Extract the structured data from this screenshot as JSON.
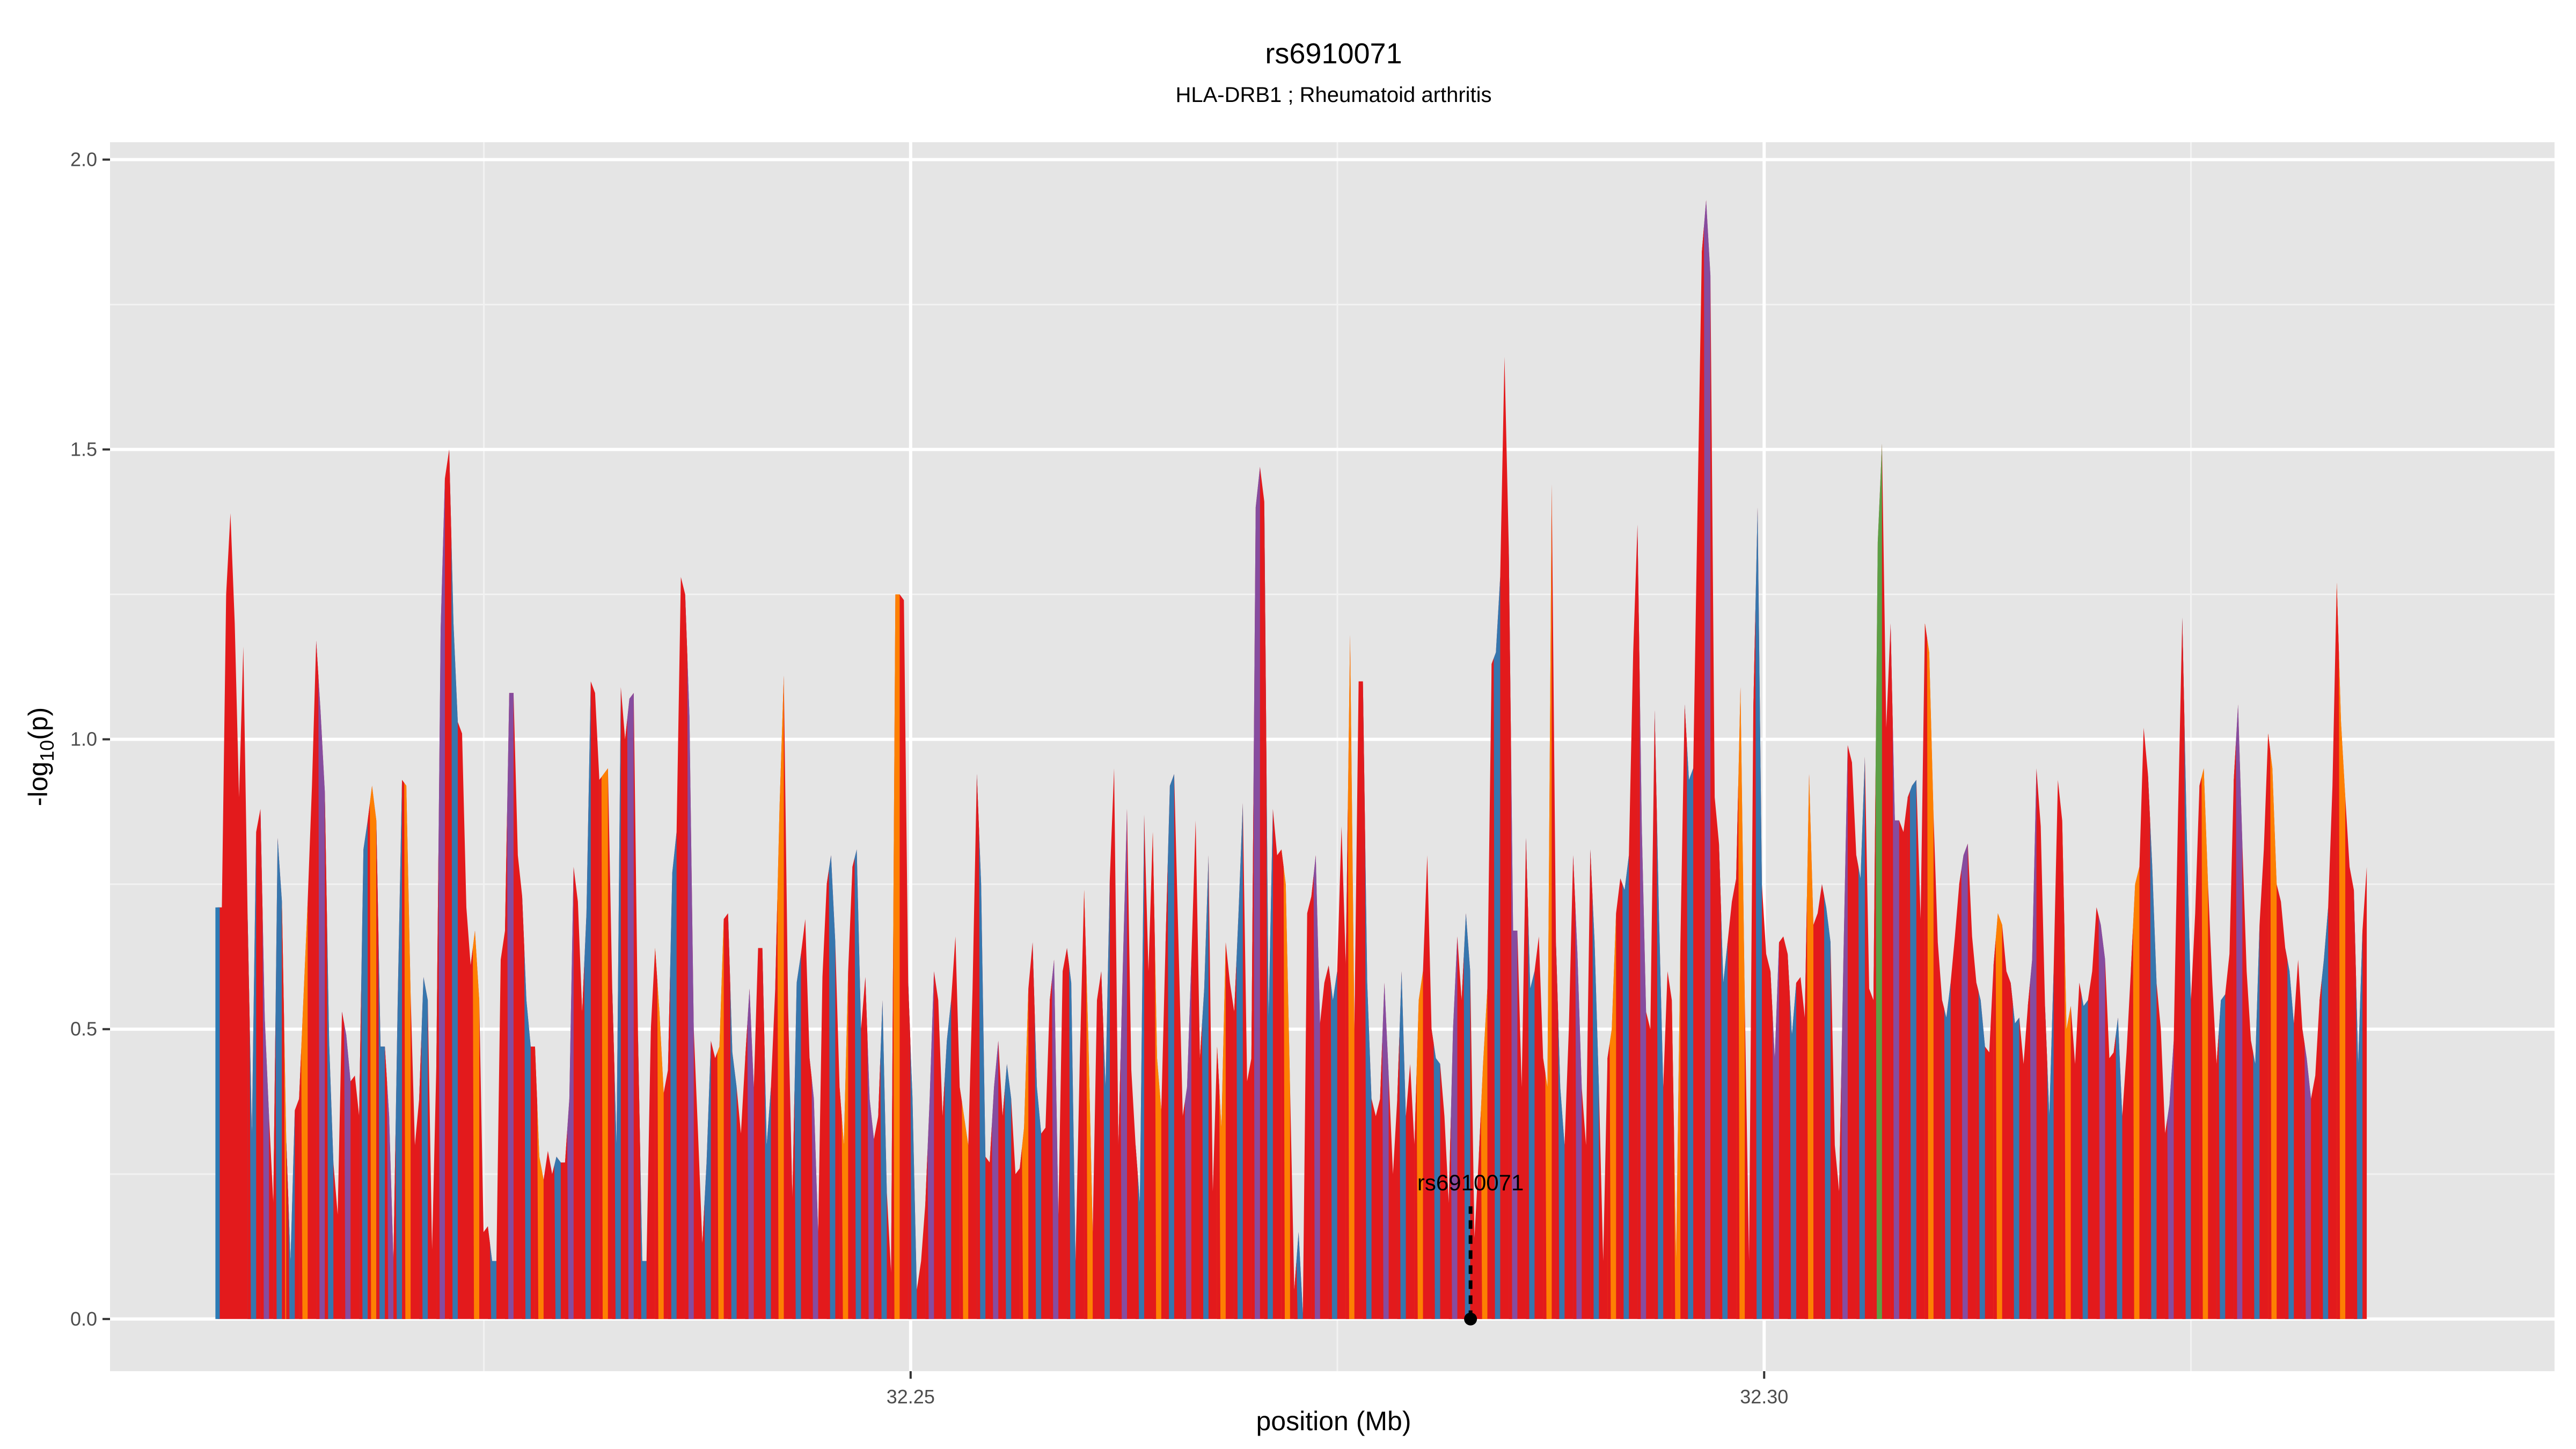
{
  "chart_data": {
    "type": "area",
    "title": "rs6910071",
    "subtitle": "HLA-DRB1 ; Rheumatoid arthritis",
    "xlabel": "position (Mb)",
    "ylabel_main": "-log",
    "ylabel_sub": "10",
    "ylabel_tail": "(p)",
    "xlim": [
      32.2031,
      32.3463
    ],
    "ylim": [
      -0.09,
      2.03
    ],
    "x_ticks": [
      32.25,
      32.3
    ],
    "x_tick_labels": [
      "32.25",
      "32.30"
    ],
    "y_ticks": [
      0.0,
      0.5,
      1.0,
      1.5,
      2.0
    ],
    "y_tick_labels": [
      "0.0",
      "0.5",
      "1.0",
      "1.5",
      "2.0"
    ],
    "grid": true,
    "colors": {
      "panel": "#e5e5e5",
      "grid_major": "#ffffff",
      "red": "#e31a1c",
      "blue": "#2c7bb6",
      "orange": "#ff8c00",
      "purple": "#7b52ae",
      "green": "#4daf4a"
    },
    "x_range": [
      32.2094,
      32.3353
    ],
    "values": [
      0.71,
      0.71,
      1.25,
      1.39,
      1.2,
      0.9,
      1.16,
      0.7,
      0.32,
      0.84,
      0.88,
      0.52,
      0.35,
      0.2,
      0.83,
      0.72,
      0.31,
      0.1,
      0.36,
      0.38,
      0.55,
      0.72,
      0.92,
      1.17,
      1.05,
      0.91,
      0.48,
      0.27,
      0.18,
      0.53,
      0.49,
      0.41,
      0.42,
      0.35,
      0.81,
      0.86,
      0.92,
      0.86,
      0.47,
      0.47,
      0.35,
      0.1,
      0.55,
      0.93,
      0.92,
      0.56,
      0.3,
      0.38,
      0.59,
      0.55,
      0.12,
      0.44,
      1.19,
      1.45,
      1.5,
      1.2,
      1.03,
      1.01,
      0.71,
      0.61,
      0.67,
      0.55,
      0.15,
      0.16,
      0.1,
      0.1,
      0.62,
      0.67,
      1.08,
      1.08,
      0.8,
      0.73,
      0.55,
      0.47,
      0.47,
      0.28,
      0.24,
      0.29,
      0.25,
      0.28,
      0.27,
      0.27,
      0.38,
      0.78,
      0.72,
      0.53,
      0.7,
      1.1,
      1.08,
      0.93,
      0.94,
      0.95,
      0.57,
      0.3,
      1.09,
      1.0,
      1.07,
      1.08,
      0.49,
      0.1,
      0.1,
      0.5,
      0.64,
      0.53,
      0.39,
      0.43,
      0.77,
      0.84,
      1.28,
      1.25,
      1.04,
      0.5,
      0.32,
      0.13,
      0.27,
      0.48,
      0.45,
      0.47,
      0.69,
      0.7,
      0.46,
      0.4,
      0.32,
      0.45,
      0.57,
      0.4,
      0.64,
      0.64,
      0.3,
      0.4,
      0.57,
      0.88,
      1.11,
      0.54,
      0.21,
      0.58,
      0.63,
      0.69,
      0.45,
      0.38,
      0.15,
      0.59,
      0.75,
      0.8,
      0.65,
      0.4,
      0.3,
      0.6,
      0.78,
      0.81,
      0.5,
      0.59,
      0.38,
      0.31,
      0.35,
      0.55,
      0.22,
      0.08,
      1.25,
      1.25,
      1.24,
      0.58,
      0.38,
      0.05,
      0.1,
      0.2,
      0.38,
      0.6,
      0.55,
      0.35,
      0.48,
      0.55,
      0.66,
      0.4,
      0.35,
      0.3,
      0.57,
      0.94,
      0.75,
      0.28,
      0.27,
      0.4,
      0.48,
      0.35,
      0.44,
      0.38,
      0.25,
      0.26,
      0.33,
      0.57,
      0.65,
      0.4,
      0.32,
      0.33,
      0.55,
      0.62,
      0.18,
      0.6,
      0.64,
      0.58,
      0.1,
      0.45,
      0.74,
      0.48,
      0.15,
      0.55,
      0.6,
      0.4,
      0.76,
      0.95,
      0.3,
      0.6,
      0.88,
      0.43,
      0.3,
      0.2,
      0.87,
      0.6,
      0.84,
      0.45,
      0.36,
      0.65,
      0.92,
      0.94,
      0.65,
      0.35,
      0.4,
      0.62,
      0.86,
      0.45,
      0.57,
      0.8,
      0.22,
      0.47,
      0.33,
      0.65,
      0.58,
      0.53,
      0.7,
      0.89,
      0.41,
      0.45,
      1.4,
      1.47,
      1.41,
      0.52,
      0.88,
      0.8,
      0.81,
      0.75,
      0.4,
      0.05,
      0.15,
      0.01,
      0.7,
      0.73,
      0.8,
      0.51,
      0.58,
      0.61,
      0.55,
      0.6,
      0.85,
      0.61,
      1.18,
      0.5,
      1.1,
      1.1,
      0.58,
      0.38,
      0.35,
      0.38,
      0.58,
      0.42,
      0.25,
      0.38,
      0.6,
      0.35,
      0.44,
      0.3,
      0.55,
      0.6,
      0.8,
      0.5,
      0.45,
      0.44,
      0.35,
      0.2,
      0.5,
      0.66,
      0.55,
      0.7,
      0.6,
      0.14,
      0.28,
      0.44,
      0.57,
      1.13,
      1.15,
      1.28,
      1.66,
      1.33,
      0.67,
      0.67,
      0.4,
      0.83,
      0.57,
      0.6,
      0.66,
      0.45,
      0.4,
      1.44,
      0.65,
      0.4,
      0.3,
      0.5,
      0.8,
      0.63,
      0.4,
      0.3,
      0.81,
      0.65,
      0.4,
      0.1,
      0.45,
      0.5,
      0.7,
      0.76,
      0.74,
      0.8,
      1.15,
      1.37,
      0.85,
      0.53,
      0.5,
      1.05,
      0.7,
      0.4,
      0.6,
      0.55,
      0.1,
      0.65,
      1.06,
      0.93,
      0.95,
      1.4,
      1.84,
      1.93,
      1.8,
      0.9,
      0.82,
      0.58,
      0.65,
      0.72,
      0.76,
      1.09,
      0.55,
      0.1,
      1.05,
      1.4,
      0.75,
      0.63,
      0.6,
      0.45,
      0.65,
      0.66,
      0.63,
      0.49,
      0.58,
      0.59,
      0.52,
      0.94,
      0.68,
      0.7,
      0.75,
      0.71,
      0.65,
      0.3,
      0.22,
      0.62,
      0.99,
      0.96,
      0.8,
      0.76,
      0.97,
      0.57,
      0.55,
      1.34,
      1.51,
      1.02,
      1.2,
      0.86,
      0.86,
      0.84,
      0.9,
      0.92,
      0.93,
      0.69,
      1.2,
      1.15,
      0.87,
      0.65,
      0.55,
      0.52,
      0.58,
      0.66,
      0.75,
      0.8,
      0.82,
      0.66,
      0.58,
      0.55,
      0.47,
      0.46,
      0.61,
      0.7,
      0.68,
      0.6,
      0.58,
      0.51,
      0.52,
      0.44,
      0.54,
      0.62,
      0.95,
      0.85,
      0.54,
      0.35,
      0.6,
      0.93,
      0.86,
      0.5,
      0.54,
      0.44,
      0.58,
      0.54,
      0.55,
      0.6,
      0.71,
      0.68,
      0.62,
      0.45,
      0.46,
      0.52,
      0.35,
      0.46,
      0.6,
      0.75,
      0.78,
      1.02,
      0.94,
      0.78,
      0.58,
      0.5,
      0.32,
      0.37,
      0.48,
      0.87,
      1.21,
      0.85,
      0.55,
      0.7,
      0.92,
      0.95,
      0.75,
      0.58,
      0.44,
      0.55,
      0.56,
      0.63,
      0.93,
      1.06,
      0.82,
      0.6,
      0.48,
      0.44,
      0.68,
      0.81,
      1.01,
      0.95,
      0.75,
      0.72,
      0.64,
      0.6,
      0.51,
      0.62,
      0.5,
      0.45,
      0.38,
      0.42,
      0.55,
      0.62,
      0.71,
      0.92,
      1.27,
      1.03,
      0.9,
      0.78,
      0.74,
      0.44,
      0.67,
      0.78
    ],
    "color_runs": [
      [
        8,
        "blue"
      ],
      [
        11,
        "purple"
      ],
      [
        14,
        "blue"
      ],
      [
        16,
        "orange"
      ],
      [
        17,
        "blue"
      ],
      [
        20,
        "orange"
      ],
      [
        24,
        "purple"
      ],
      [
        26,
        "blue"
      ],
      [
        30,
        "purple"
      ],
      [
        34,
        "blue"
      ],
      [
        36,
        "orange"
      ],
      [
        38,
        "blue"
      ],
      [
        40,
        "purple"
      ],
      [
        42,
        "blue"
      ],
      [
        44,
        "orange"
      ],
      [
        48,
        "blue"
      ],
      [
        52,
        "purple"
      ],
      [
        55,
        "blue"
      ],
      [
        60,
        "orange"
      ],
      [
        64,
        "blue"
      ],
      [
        68,
        "purple"
      ],
      [
        72,
        "blue"
      ],
      [
        75,
        "orange"
      ],
      [
        79,
        "blue"
      ],
      [
        82,
        "purple"
      ],
      [
        86,
        "blue"
      ],
      [
        90,
        "orange"
      ],
      [
        93,
        "blue"
      ],
      [
        96,
        "purple"
      ],
      [
        99,
        "blue"
      ],
      [
        103,
        "orange"
      ],
      [
        106,
        "blue"
      ],
      [
        110,
        "purple"
      ],
      [
        114,
        "blue"
      ],
      [
        117,
        "orange"
      ],
      [
        120,
        "blue"
      ],
      [
        124,
        "purple"
      ],
      [
        128,
        "blue"
      ],
      [
        131,
        "orange"
      ],
      [
        135,
        "blue"
      ],
      [
        139,
        "purple"
      ],
      [
        143,
        "blue"
      ],
      [
        146,
        "orange"
      ],
      [
        149,
        "blue"
      ],
      [
        152,
        "purple"
      ],
      [
        155,
        "blue"
      ],
      [
        158,
        "orange"
      ],
      [
        162,
        "blue"
      ],
      [
        166,
        "purple"
      ],
      [
        170,
        "blue"
      ],
      [
        174,
        "orange"
      ],
      [
        178,
        "blue"
      ],
      [
        181,
        "purple"
      ],
      [
        184,
        "blue"
      ],
      [
        188,
        "orange"
      ],
      [
        191,
        "blue"
      ],
      [
        195,
        "purple"
      ],
      [
        199,
        "blue"
      ],
      [
        203,
        "orange"
      ],
      [
        207,
        "blue"
      ],
      [
        211,
        "purple"
      ],
      [
        215,
        "blue"
      ],
      [
        219,
        "orange"
      ],
      [
        222,
        "blue"
      ],
      [
        226,
        "purple"
      ],
      [
        230,
        "blue"
      ],
      [
        234,
        "orange"
      ],
      [
        238,
        "blue"
      ],
      [
        242,
        "purple"
      ],
      [
        245,
        "blue"
      ],
      [
        249,
        "orange"
      ],
      [
        252,
        "blue"
      ],
      [
        256,
        "purple"
      ],
      [
        260,
        "blue"
      ],
      [
        264,
        "orange"
      ],
      [
        268,
        "blue"
      ],
      [
        272,
        "purple"
      ],
      [
        276,
        "blue"
      ],
      [
        280,
        "orange"
      ],
      [
        284,
        "blue"
      ],
      [
        288,
        "purple"
      ],
      [
        291,
        "blue"
      ],
      [
        295,
        "orange"
      ],
      [
        298,
        "blue"
      ],
      [
        302,
        "purple"
      ],
      [
        306,
        "blue"
      ],
      [
        310,
        "orange"
      ],
      [
        313,
        "blue"
      ],
      [
        317,
        "purple"
      ],
      [
        321,
        "blue"
      ],
      [
        325,
        "orange"
      ],
      [
        328,
        "blue"
      ],
      [
        332,
        "purple"
      ],
      [
        336,
        "blue"
      ],
      [
        340,
        "orange"
      ],
      [
        343,
        "blue"
      ],
      [
        347,
        "purple"
      ],
      [
        351,
        "blue"
      ],
      [
        355,
        "orange"
      ],
      [
        359,
        "blue"
      ],
      [
        363,
        "purple"
      ],
      [
        367,
        "blue"
      ],
      [
        371,
        "orange"
      ],
      [
        375,
        "blue"
      ],
      [
        379,
        "purple"
      ],
      [
        383,
        "blue"
      ],
      [
        387,
        "green"
      ],
      [
        391,
        "purple"
      ],
      [
        395,
        "blue"
      ],
      [
        399,
        "orange"
      ],
      [
        403,
        "blue"
      ],
      [
        407,
        "purple"
      ],
      [
        411,
        "blue"
      ],
      [
        415,
        "orange"
      ],
      [
        419,
        "blue"
      ],
      [
        423,
        "purple"
      ],
      [
        427,
        "blue"
      ],
      [
        431,
        "orange"
      ],
      [
        435,
        "blue"
      ],
      [
        439,
        "purple"
      ],
      [
        443,
        "blue"
      ],
      [
        447,
        "orange"
      ],
      [
        451,
        "blue"
      ],
      [
        455,
        "purple"
      ],
      [
        459,
        "blue"
      ],
      [
        463,
        "orange"
      ],
      [
        467,
        "blue"
      ],
      [
        471,
        "purple"
      ],
      [
        475,
        "blue"
      ],
      [
        479,
        "orange"
      ],
      [
        483,
        "blue"
      ],
      [
        487,
        "purple"
      ],
      [
        491,
        "blue"
      ],
      [
        495,
        "orange"
      ],
      [
        499,
        "blue"
      ]
    ],
    "annotation": {
      "label": "rs6910071",
      "x": 32.2828,
      "y": 0.0
    }
  }
}
